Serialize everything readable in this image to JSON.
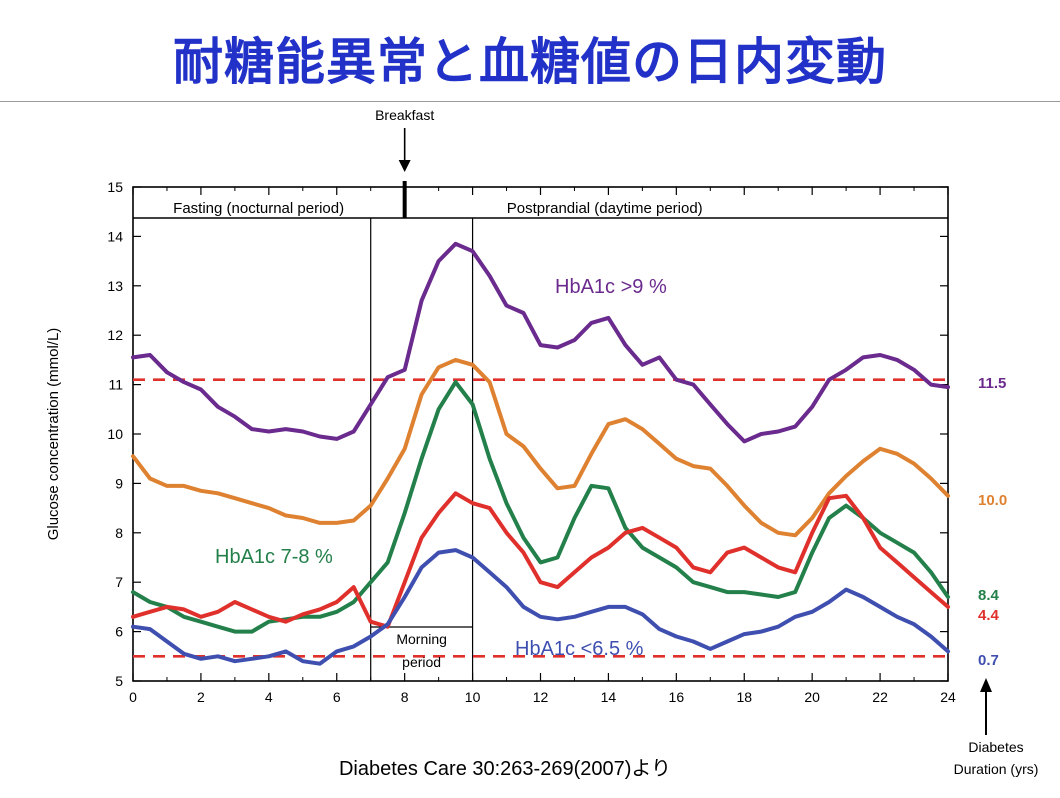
{
  "slide": {
    "title": "耐糖能異常と血糖値の日内変動",
    "citation": "Diabetes Care 30:263-269(2007)より"
  },
  "colors": {
    "title": "#2231c8",
    "purple": "#6a2a8e",
    "orange": "#de8231",
    "green": "#23804a",
    "red": "#e0302c",
    "blue": "#3f4fb0",
    "dashed_reference": "#e0302c"
  },
  "chart_data": {
    "type": "line",
    "title": "",
    "xlabel": "",
    "ylabel": "Glucose concentration (mmol/L)",
    "xlim": [
      0,
      24
    ],
    "ylim": [
      5,
      15
    ],
    "x_ticks": [
      "0",
      "2",
      "4",
      "6",
      "8",
      "10",
      "12",
      "14",
      "16",
      "18",
      "20",
      "22",
      "24"
    ],
    "y_ticks": [
      "5",
      "6",
      "7",
      "8",
      "9",
      "10",
      "11",
      "12",
      "13",
      "14",
      "15"
    ],
    "grid": false,
    "annotations": {
      "breakfast": "Breakfast",
      "fasting": "Fasting (nocturnal period)",
      "postprandial": "Postprandial (daytime period)",
      "morning_period": [
        "Morning",
        "period"
      ],
      "duration_label": [
        "Diabetes",
        "Duration (yrs)"
      ]
    },
    "reference_lines": [
      11.1,
      5.5
    ],
    "vertical_lines": [
      7,
      10
    ],
    "series": [
      {
        "name": "HbA1c >9 %",
        "color_key": "purple",
        "duration": "11.5",
        "x": [
          0,
          0.5,
          1,
          1.5,
          2,
          2.5,
          3,
          3.5,
          4,
          4.5,
          5,
          5.5,
          6,
          6.5,
          7,
          7.5,
          8,
          8.5,
          9,
          9.5,
          10,
          10.5,
          11,
          11.5,
          12,
          12.5,
          13,
          13.5,
          14,
          14.5,
          15,
          15.5,
          16,
          16.5,
          17,
          17.5,
          18,
          18.5,
          19,
          19.5,
          20,
          20.5,
          21,
          21.5,
          22,
          22.5,
          23,
          23.5,
          24
        ],
        "y": [
          11.55,
          11.6,
          11.25,
          11.05,
          10.9,
          10.55,
          10.35,
          10.1,
          10.05,
          10.1,
          10.05,
          9.95,
          9.9,
          10.05,
          10.6,
          11.15,
          11.3,
          12.7,
          13.5,
          13.85,
          13.7,
          13.2,
          12.6,
          12.45,
          11.8,
          11.75,
          11.9,
          12.25,
          12.35,
          11.8,
          11.4,
          11.55,
          11.1,
          11.0,
          10.6,
          10.2,
          9.85,
          10.0,
          10.05,
          10.15,
          10.55,
          11.1,
          11.3,
          11.55,
          11.6,
          11.5,
          11.3,
          11.0,
          10.95
        ]
      },
      {
        "name": "",
        "color_key": "orange",
        "duration": "10.0",
        "x": [
          0,
          0.5,
          1,
          1.5,
          2,
          2.5,
          3,
          3.5,
          4,
          4.5,
          5,
          5.5,
          6,
          6.5,
          7,
          7.5,
          8,
          8.5,
          9,
          9.5,
          10,
          10.5,
          11,
          11.5,
          12,
          12.5,
          13,
          13.5,
          14,
          14.5,
          15,
          15.5,
          16,
          16.5,
          17,
          17.5,
          18,
          18.5,
          19,
          19.5,
          20,
          20.5,
          21,
          21.5,
          22,
          22.5,
          23,
          23.5,
          24
        ],
        "y": [
          9.55,
          9.1,
          8.95,
          8.95,
          8.85,
          8.8,
          8.7,
          8.6,
          8.5,
          8.35,
          8.3,
          8.2,
          8.2,
          8.25,
          8.55,
          9.1,
          9.7,
          10.8,
          11.35,
          11.5,
          11.4,
          11.05,
          10.0,
          9.75,
          9.3,
          8.9,
          8.95,
          9.6,
          10.2,
          10.3,
          10.1,
          9.8,
          9.5,
          9.35,
          9.3,
          8.95,
          8.55,
          8.2,
          8.0,
          7.95,
          8.3,
          8.8,
          9.15,
          9.45,
          9.7,
          9.6,
          9.4,
          9.1,
          8.75
        ]
      },
      {
        "name": "HbA1c 7-8 %",
        "color_key": "green",
        "duration": "8.4",
        "x": [
          0,
          0.5,
          1,
          1.5,
          2,
          2.5,
          3,
          3.5,
          4,
          4.5,
          5,
          5.5,
          6,
          6.5,
          7,
          7.5,
          8,
          8.5,
          9,
          9.5,
          10,
          10.5,
          11,
          11.5,
          12,
          12.5,
          13,
          13.5,
          14,
          14.5,
          15,
          15.5,
          16,
          16.5,
          17,
          17.5,
          18,
          18.5,
          19,
          19.5,
          20,
          20.5,
          21,
          21.5,
          22,
          22.5,
          23,
          23.5,
          24
        ],
        "y": [
          6.8,
          6.6,
          6.5,
          6.3,
          6.2,
          6.1,
          6.0,
          6.0,
          6.2,
          6.25,
          6.3,
          6.3,
          6.4,
          6.6,
          7.0,
          7.4,
          8.4,
          9.5,
          10.5,
          11.05,
          10.6,
          9.5,
          8.6,
          7.9,
          7.4,
          7.5,
          8.3,
          8.95,
          8.9,
          8.1,
          7.7,
          7.5,
          7.3,
          7.0,
          6.9,
          6.8,
          6.8,
          6.75,
          6.7,
          6.8,
          7.6,
          8.3,
          8.55,
          8.3,
          8.0,
          7.8,
          7.6,
          7.2,
          6.7
        ]
      },
      {
        "name": "",
        "color_key": "red",
        "duration": "4.4",
        "x": [
          0,
          0.5,
          1,
          1.5,
          2,
          2.5,
          3,
          3.5,
          4,
          4.5,
          5,
          5.5,
          6,
          6.5,
          7,
          7.5,
          8,
          8.5,
          9,
          9.5,
          10,
          10.5,
          11,
          11.5,
          12,
          12.5,
          13,
          13.5,
          14,
          14.5,
          15,
          15.5,
          16,
          16.5,
          17,
          17.5,
          18,
          18.5,
          19,
          19.5,
          20,
          20.5,
          21,
          21.5,
          22,
          22.5,
          23,
          23.5,
          24
        ],
        "y": [
          6.3,
          6.4,
          6.5,
          6.45,
          6.3,
          6.4,
          6.6,
          6.45,
          6.3,
          6.2,
          6.35,
          6.45,
          6.6,
          6.9,
          6.2,
          6.1,
          7.0,
          7.9,
          8.4,
          8.8,
          8.6,
          8.5,
          8.0,
          7.6,
          7.0,
          6.9,
          7.2,
          7.5,
          7.7,
          8.0,
          8.1,
          7.9,
          7.7,
          7.3,
          7.2,
          7.6,
          7.7,
          7.5,
          7.3,
          7.2,
          8.0,
          8.7,
          8.75,
          8.3,
          7.7,
          7.4,
          7.1,
          6.8,
          6.5
        ]
      },
      {
        "name": "HbA1c <6.5 %",
        "color_key": "blue",
        "duration": "0.7",
        "x": [
          0,
          0.5,
          1,
          1.5,
          2,
          2.5,
          3,
          3.5,
          4,
          4.5,
          5,
          5.5,
          6,
          6.5,
          7,
          7.5,
          8,
          8.5,
          9,
          9.5,
          10,
          10.5,
          11,
          11.5,
          12,
          12.5,
          13,
          13.5,
          14,
          14.5,
          15,
          15.5,
          16,
          16.5,
          17,
          17.5,
          18,
          18.5,
          19,
          19.5,
          20,
          20.5,
          21,
          21.5,
          22,
          22.5,
          23,
          23.5,
          24
        ],
        "y": [
          6.1,
          6.05,
          5.8,
          5.55,
          5.45,
          5.5,
          5.4,
          5.45,
          5.5,
          5.6,
          5.4,
          5.35,
          5.6,
          5.7,
          5.9,
          6.15,
          6.7,
          7.3,
          7.6,
          7.65,
          7.5,
          7.2,
          6.9,
          6.5,
          6.3,
          6.25,
          6.3,
          6.4,
          6.5,
          6.5,
          6.35,
          6.05,
          5.9,
          5.8,
          5.65,
          5.8,
          5.95,
          6.0,
          6.1,
          6.3,
          6.4,
          6.6,
          6.85,
          6.7,
          6.5,
          6.3,
          6.15,
          5.9,
          5.6
        ]
      }
    ]
  }
}
